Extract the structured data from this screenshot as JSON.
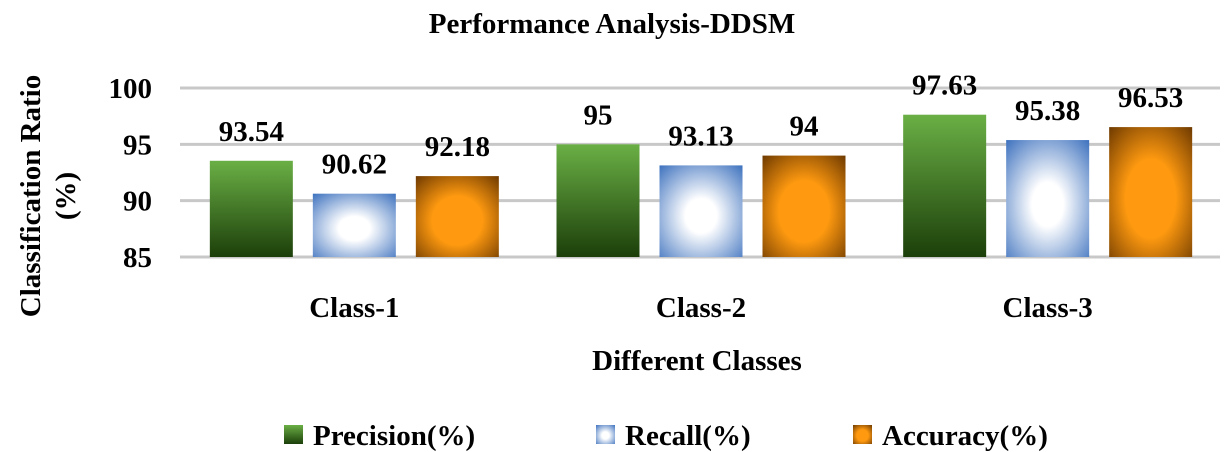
{
  "chart_data": {
    "type": "bar",
    "title": "Performance Analysis-DDSM",
    "xlabel": "Different Classes",
    "ylabel_lines": [
      "Classification Ratio",
      "(%)"
    ],
    "categories": [
      "Class-1",
      "Class-2",
      "Class-3"
    ],
    "ylim": [
      85,
      100
    ],
    "yticks": [
      85,
      90,
      95,
      100
    ],
    "grid": true,
    "legend_position": "bottom",
    "series": [
      {
        "name": "Precision(%)",
        "values": [
          93.54,
          95,
          97.63
        ],
        "labels": [
          "93.54",
          "95",
          "97.63"
        ],
        "colors": {
          "top": "#6aaf45",
          "bottom": "#1c3f0a"
        },
        "fill": "linear"
      },
      {
        "name": "Recall(%)",
        "values": [
          90.62,
          93.13,
          95.38
        ],
        "labels": [
          "90.62",
          "93.13",
          "95.38"
        ],
        "colors": {
          "center": "#ffffff",
          "edge": "#3a6fbd"
        },
        "fill": "radial"
      },
      {
        "name": "Accuracy(%)",
        "values": [
          92.18,
          94,
          96.53
        ],
        "labels": [
          "92.18",
          "94",
          "96.53"
        ],
        "colors": {
          "center": "#ff9a10",
          "edge": "#6b3800"
        },
        "fill": "radial"
      }
    ]
  }
}
